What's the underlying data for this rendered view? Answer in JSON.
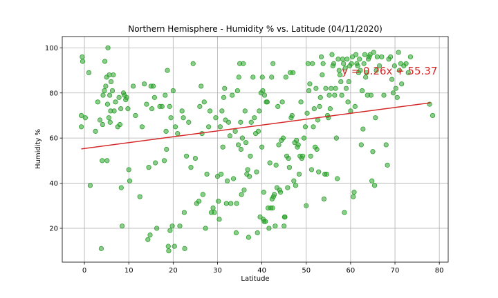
{
  "chart_data": {
    "type": "scatter",
    "title": "Northern Hemisphere - Humidity % vs. Latitude (04/11/2020)",
    "xlabel": "Latitude",
    "ylabel": "Humidity %",
    "xlim": [
      -5,
      82
    ],
    "ylim": [
      5,
      105
    ],
    "xticks": [
      0,
      10,
      20,
      30,
      40,
      50,
      60,
      70,
      80
    ],
    "yticks": [
      20,
      40,
      60,
      80,
      100
    ],
    "grid": true,
    "point_color": "#2ca02c",
    "line_color": "#d62728",
    "annotation": {
      "text": "y = 0.26x + 55.37",
      "x": 58,
      "y": 90
    },
    "regression": {
      "slope": 0.26,
      "intercept": 55.37,
      "x_range": [
        -0.7,
        78
      ]
    },
    "points": [
      [
        -0.7,
        70
      ],
      [
        -0.7,
        65
      ],
      [
        -0.5,
        96
      ],
      [
        -0.4,
        94
      ],
      [
        0.2,
        69
      ],
      [
        1.0,
        89
      ],
      [
        1.3,
        39
      ],
      [
        2.5,
        63
      ],
      [
        3.0,
        76
      ],
      [
        3.5,
        68
      ],
      [
        3.8,
        11
      ],
      [
        4.0,
        50
      ],
      [
        4.1,
        66
      ],
      [
        4.2,
        79
      ],
      [
        4.5,
        81
      ],
      [
        4.6,
        94
      ],
      [
        4.8,
        83
      ],
      [
        5.0,
        87
      ],
      [
        5.1,
        50
      ],
      [
        5.2,
        75
      ],
      [
        5.3,
        100
      ],
      [
        5.5,
        69
      ],
      [
        5.6,
        88
      ],
      [
        5.7,
        79
      ],
      [
        5.8,
        67
      ],
      [
        5.9,
        72
      ],
      [
        6.0,
        85
      ],
      [
        6.3,
        81
      ],
      [
        6.5,
        88
      ],
      [
        6.7,
        72
      ],
      [
        7.0,
        76
      ],
      [
        7.5,
        65
      ],
      [
        7.8,
        78
      ],
      [
        8.0,
        66
      ],
      [
        8.2,
        73
      ],
      [
        8.3,
        38
      ],
      [
        8.5,
        21
      ],
      [
        8.8,
        80
      ],
      [
        9.0,
        79
      ],
      [
        9.3,
        77
      ],
      [
        9.5,
        78
      ],
      [
        9.8,
        73
      ],
      [
        10.0,
        46
      ],
      [
        10.2,
        41
      ],
      [
        11.0,
        83
      ],
      [
        11.5,
        70
      ],
      [
        12.5,
        34
      ],
      [
        13.0,
        65
      ],
      [
        13.5,
        84
      ],
      [
        14.0,
        75
      ],
      [
        14.3,
        15
      ],
      [
        14.5,
        47
      ],
      [
        14.8,
        17
      ],
      [
        15.0,
        83
      ],
      [
        15.2,
        73
      ],
      [
        15.5,
        83
      ],
      [
        15.8,
        78
      ],
      [
        16.0,
        49
      ],
      [
        16.3,
        20
      ],
      [
        17.0,
        74
      ],
      [
        17.5,
        74
      ],
      [
        18.0,
        50
      ],
      [
        18.2,
        79
      ],
      [
        18.4,
        63
      ],
      [
        18.5,
        55
      ],
      [
        18.7,
        90
      ],
      [
        18.9,
        12
      ],
      [
        19.0,
        10
      ],
      [
        19.2,
        74
      ],
      [
        19.3,
        19
      ],
      [
        19.5,
        69
      ],
      [
        19.8,
        21
      ],
      [
        20.0,
        81
      ],
      [
        20.3,
        12
      ],
      [
        20.5,
        65
      ],
      [
        21.0,
        62
      ],
      [
        21.5,
        21
      ],
      [
        22.0,
        72
      ],
      [
        22.3,
        69
      ],
      [
        22.5,
        27
      ],
      [
        22.6,
        11
      ],
      [
        23.0,
        52
      ],
      [
        23.5,
        67
      ],
      [
        24.0,
        47
      ],
      [
        24.5,
        93
      ],
      [
        25.0,
        51
      ],
      [
        25.3,
        31
      ],
      [
        25.8,
        32
      ],
      [
        26.0,
        74
      ],
      [
        26.3,
        83
      ],
      [
        26.5,
        62
      ],
      [
        26.7,
        35
      ],
      [
        27.0,
        76
      ],
      [
        27.3,
        20
      ],
      [
        27.6,
        44
      ],
      [
        28.0,
        65
      ],
      [
        28.3,
        72
      ],
      [
        28.6,
        27
      ],
      [
        29.0,
        29
      ],
      [
        29.3,
        27
      ],
      [
        29.6,
        69
      ],
      [
        30.0,
        43
      ],
      [
        30.2,
        32
      ],
      [
        30.4,
        24
      ],
      [
        30.6,
        65
      ],
      [
        30.8,
        44
      ],
      [
        31.0,
        72
      ],
      [
        31.2,
        56
      ],
      [
        31.4,
        78
      ],
      [
        31.6,
        82
      ],
      [
        31.8,
        68
      ],
      [
        32.0,
        31
      ],
      [
        32.2,
        41
      ],
      [
        32.5,
        67
      ],
      [
        32.8,
        61
      ],
      [
        33.0,
        31
      ],
      [
        33.3,
        79
      ],
      [
        33.6,
        42
      ],
      [
        34.0,
        63
      ],
      [
        34.2,
        18
      ],
      [
        34.3,
        31
      ],
      [
        34.5,
        81
      ],
      [
        34.7,
        57
      ],
      [
        34.8,
        87
      ],
      [
        35.0,
        93
      ],
      [
        35.2,
        67
      ],
      [
        35.3,
        55
      ],
      [
        35.4,
        35
      ],
      [
        35.6,
        60
      ],
      [
        35.8,
        93
      ],
      [
        36.0,
        37
      ],
      [
        36.2,
        72
      ],
      [
        36.4,
        58
      ],
      [
        36.6,
        44
      ],
      [
        36.8,
        46
      ],
      [
        37.0,
        16
      ],
      [
        37.2,
        43
      ],
      [
        37.4,
        52
      ],
      [
        37.6,
        67
      ],
      [
        38.0,
        87
      ],
      [
        38.3,
        69
      ],
      [
        38.6,
        62
      ],
      [
        38.8,
        45
      ],
      [
        39.0,
        18
      ],
      [
        39.2,
        63
      ],
      [
        39.4,
        72
      ],
      [
        39.6,
        25
      ],
      [
        39.8,
        80
      ],
      [
        40.0,
        56
      ],
      [
        40.1,
        87
      ],
      [
        40.2,
        81
      ],
      [
        40.3,
        24
      ],
      [
        40.4,
        36
      ],
      [
        40.5,
        23
      ],
      [
        40.6,
        79
      ],
      [
        40.8,
        23
      ],
      [
        41.0,
        76
      ],
      [
        41.2,
        76
      ],
      [
        41.4,
        29
      ],
      [
        41.6,
        20
      ],
      [
        41.8,
        49
      ],
      [
        42.0,
        29
      ],
      [
        42.2,
        87
      ],
      [
        42.3,
        33
      ],
      [
        42.4,
        29
      ],
      [
        42.5,
        93
      ],
      [
        42.6,
        34
      ],
      [
        42.8,
        35
      ],
      [
        43.0,
        21
      ],
      [
        43.2,
        48
      ],
      [
        43.4,
        38
      ],
      [
        43.6,
        74
      ],
      [
        43.8,
        57
      ],
      [
        44.0,
        37
      ],
      [
        44.2,
        36
      ],
      [
        44.4,
        59
      ],
      [
        44.6,
        76
      ],
      [
        44.8,
        60
      ],
      [
        45.0,
        21
      ],
      [
        45.1,
        25
      ],
      [
        45.2,
        25
      ],
      [
        45.4,
        87
      ],
      [
        45.6,
        52
      ],
      [
        45.8,
        38
      ],
      [
        46.0,
        51
      ],
      [
        46.2,
        47
      ],
      [
        46.4,
        89
      ],
      [
        46.6,
        69
      ],
      [
        46.8,
        70
      ],
      [
        47.0,
        89
      ],
      [
        47.2,
        41
      ],
      [
        47.4,
        58
      ],
      [
        47.6,
        39
      ],
      [
        47.8,
        59
      ],
      [
        48.0,
        56
      ],
      [
        48.2,
        57
      ],
      [
        48.4,
        44
      ],
      [
        48.6,
        52
      ],
      [
        48.8,
        76
      ],
      [
        49.0,
        51
      ],
      [
        49.2,
        52
      ],
      [
        49.5,
        60
      ],
      [
        49.8,
        65
      ],
      [
        50.0,
        30
      ],
      [
        50.2,
        71
      ],
      [
        50.4,
        93
      ],
      [
        50.6,
        81
      ],
      [
        50.8,
        84
      ],
      [
        51.0,
        52
      ],
      [
        51.2,
        46
      ],
      [
        51.4,
        93
      ],
      [
        51.6,
        65
      ],
      [
        51.8,
        73
      ],
      [
        52.0,
        56
      ],
      [
        52.2,
        82
      ],
      [
        52.4,
        55
      ],
      [
        52.6,
        68
      ],
      [
        52.8,
        45
      ],
      [
        53.0,
        74
      ],
      [
        53.2,
        78
      ],
      [
        53.4,
        96
      ],
      [
        53.6,
        88
      ],
      [
        53.8,
        93
      ],
      [
        54.0,
        33
      ],
      [
        54.2,
        44
      ],
      [
        54.4,
        82
      ],
      [
        54.6,
        44
      ],
      [
        54.8,
        70
      ],
      [
        55.0,
        69
      ],
      [
        55.2,
        79
      ],
      [
        55.4,
        73
      ],
      [
        55.6,
        82
      ],
      [
        55.8,
        97
      ],
      [
        56.0,
        92
      ],
      [
        56.2,
        93
      ],
      [
        56.4,
        79
      ],
      [
        56.6,
        82
      ],
      [
        56.8,
        60
      ],
      [
        57.0,
        42
      ],
      [
        57.2,
        95
      ],
      [
        57.4,
        90
      ],
      [
        57.6,
        88
      ],
      [
        57.8,
        85
      ],
      [
        58.0,
        79
      ],
      [
        58.2,
        95
      ],
      [
        58.4,
        93
      ],
      [
        58.6,
        27
      ],
      [
        58.8,
        91
      ],
      [
        59.0,
        82
      ],
      [
        59.2,
        95
      ],
      [
        59.4,
        76
      ],
      [
        59.6,
        85
      ],
      [
        59.8,
        92
      ],
      [
        60.0,
        72
      ],
      [
        60.2,
        93
      ],
      [
        60.4,
        96
      ],
      [
        60.6,
        34
      ],
      [
        60.8,
        36
      ],
      [
        61.0,
        74
      ],
      [
        61.2,
        97
      ],
      [
        61.4,
        93
      ],
      [
        61.6,
        92
      ],
      [
        61.8,
        89
      ],
      [
        62.0,
        95
      ],
      [
        62.2,
        90
      ],
      [
        62.4,
        57
      ],
      [
        62.6,
        81
      ],
      [
        62.8,
        64
      ],
      [
        63.0,
        93
      ],
      [
        63.2,
        97
      ],
      [
        63.4,
        87
      ],
      [
        63.6,
        89
      ],
      [
        63.8,
        79
      ],
      [
        64.0,
        95
      ],
      [
        64.2,
        96
      ],
      [
        64.4,
        97
      ],
      [
        64.6,
        79
      ],
      [
        64.8,
        41
      ],
      [
        65.0,
        54
      ],
      [
        65.2,
        98
      ],
      [
        65.4,
        39
      ],
      [
        65.6,
        69
      ],
      [
        65.8,
        90
      ],
      [
        66.0,
        96
      ],
      [
        66.5,
        92
      ],
      [
        67.0,
        96
      ],
      [
        67.5,
        79
      ],
      [
        68.0,
        57
      ],
      [
        68.3,
        48
      ],
      [
        68.6,
        95
      ],
      [
        69.0,
        96
      ],
      [
        69.3,
        86
      ],
      [
        69.6,
        80
      ],
      [
        69.9,
        92
      ],
      [
        70.2,
        82
      ],
      [
        70.5,
        78
      ],
      [
        70.8,
        98
      ],
      [
        71.0,
        90
      ],
      [
        71.3,
        93
      ],
      [
        71.5,
        84
      ],
      [
        72.0,
        92
      ],
      [
        72.5,
        93
      ],
      [
        73.0,
        89
      ],
      [
        73.5,
        96
      ],
      [
        77.8,
        75
      ],
      [
        78.5,
        70
      ]
    ]
  }
}
